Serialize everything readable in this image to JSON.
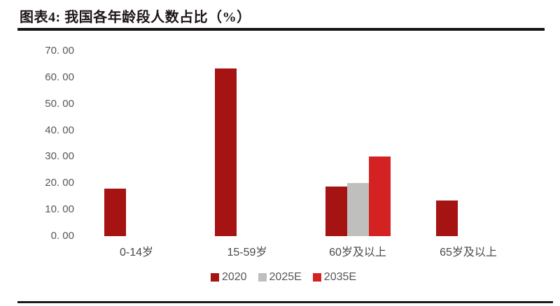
{
  "header": {
    "title": "图表4: 我国各年龄段人数占比（%）"
  },
  "chart_data": {
    "type": "bar",
    "title": "图表4: 我国各年龄段人数占比（%）",
    "categories": [
      "0-14岁",
      "15-59岁",
      "60岁及以上",
      "65岁及以上"
    ],
    "series": [
      {
        "name": "2020",
        "color": "#A51312",
        "values": [
          17.95,
          63.35,
          18.7,
          13.5
        ]
      },
      {
        "name": "2025E",
        "color": "#BFBFBD",
        "values": [
          null,
          null,
          20.0,
          null
        ]
      },
      {
        "name": "2035E",
        "color": "#D42121",
        "values": [
          null,
          null,
          30.0,
          null
        ]
      }
    ],
    "ylim": [
      0,
      70
    ],
    "ytick_step": 10,
    "ytick_labels": [
      "70. 00",
      "60. 00",
      "50. 00",
      "40. 00",
      "30. 00",
      "20. 00",
      "10. 00",
      "0. 00"
    ],
    "xlabel": "",
    "ylabel": "",
    "grid": false,
    "legend_position": "bottom",
    "legend_labels": [
      "2020",
      "2025E",
      "2035E"
    ]
  },
  "colors": {
    "series_2020": "#A51312",
    "series_2025e": "#BFBFBD",
    "series_2035e": "#D42121",
    "title_text": "#1e1616",
    "rule": "#141414",
    "axis_text": "#565656"
  }
}
